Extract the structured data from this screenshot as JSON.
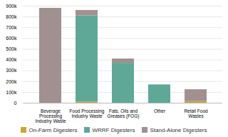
{
  "chart_data": {
    "type": "bar",
    "stacked": true,
    "categories": [
      "Beverage\nProcessing\nIndustry Waste",
      "Food Processing\nIndustry Waste",
      "Fats, Oils and\nGreases (FOG)",
      "Other",
      "Retail Food\nWastes"
    ],
    "series": [
      {
        "name": "On-Farm Digesters",
        "color": "#c8a832",
        "values": [
          0,
          10000,
          0,
          0,
          15000
        ]
      },
      {
        "name": "WRRF Digesters",
        "color": "#5fa898",
        "values": [
          0,
          800000,
          370000,
          170000,
          0
        ]
      },
      {
        "name": "Stand-Alone Digesters",
        "color": "#a09090",
        "values": [
          880000,
          50000,
          40000,
          0,
          110000
        ]
      }
    ],
    "ylim": [
      0,
      900000
    ],
    "yticks": [
      0,
      {
        "value": 100000,
        "label": "100k"
      },
      {
        "value": 200000,
        "label": "200k"
      },
      {
        "value": 300000,
        "label": "300k"
      },
      {
        "value": 400000,
        "label": "400k"
      },
      {
        "value": 500000,
        "label": "500k"
      },
      {
        "value": 600000,
        "label": "600k"
      },
      {
        "value": 700000,
        "label": "700k"
      },
      {
        "value": 800000,
        "label": "800k"
      },
      {
        "value": 900000,
        "label": "900k"
      }
    ],
    "grid": true,
    "legend": "bottom"
  }
}
